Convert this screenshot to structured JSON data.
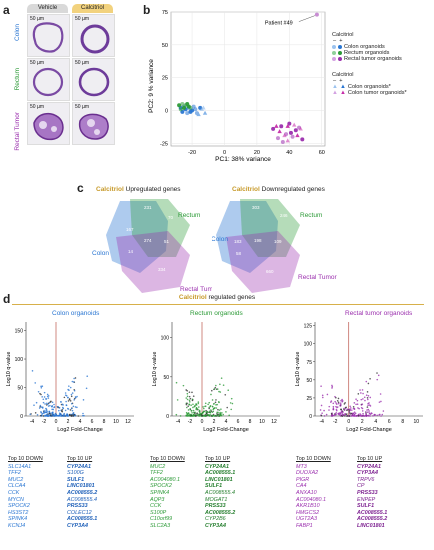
{
  "panels": {
    "a": "a",
    "b": "b",
    "c": "c",
    "d": "d"
  },
  "colors": {
    "colon": "#2a76d2",
    "rectum": "#2c9a37",
    "rectal_tumor": "#9b2fae",
    "gold": "#d7b04a",
    "vehicle_tab": "#d9d9d9",
    "calcitriol_tab": "#f2d27e"
  },
  "panel_a": {
    "col_vehicle": "Vehicle",
    "col_calcitriol": "Calcitriol",
    "rows": [
      "Colon",
      "Rectum",
      "Rectal Tumor"
    ],
    "scale": "50 µm"
  },
  "panel_b": {
    "annotation": "Patient #49",
    "legend": {
      "group1_title": "Calcitriol",
      "group1_signs": [
        "–",
        "+"
      ],
      "group1_items": [
        "Colon organoids",
        "Rectum organoids",
        "Rectal tumor organoids"
      ],
      "group2_title": "Calcitriol",
      "group2_signs": [
        "–",
        "+"
      ],
      "group2_items": [
        "Colon organoids*",
        "Colon tumor organoids*"
      ]
    }
  },
  "panel_c": {
    "left_title_a": "Calcitriol",
    "left_title_b": " Upregulated genes",
    "right_title_a": "Calcitriol",
    "right_title_b": " Downregulated genes",
    "set_colon": "Colon",
    "set_rectum": "Rectum",
    "set_tumor": "Rectal Tumor",
    "left_counts": {
      "colon_only": "167",
      "rectum_only": "70",
      "top_shared": "231",
      "center": "274",
      "right_mid": "51",
      "lower_left": "14",
      "tumor_only": "334"
    },
    "right_counts": {
      "colon_only": "183",
      "rectum_only": "246",
      "top_shared": "303",
      "center": "198",
      "right_mid": "109",
      "lower_left": "58",
      "tumor_only": "660"
    }
  },
  "panel_d": {
    "header_a": "Calcitriol",
    "header_b": " regulated genes",
    "ylabel": "Log10 q-value",
    "xlabel": "Log2 Fold-Change",
    "plots": [
      {
        "title": "Colon organoids",
        "yticks": [
          "150",
          "100",
          "50",
          "0"
        ],
        "xticks": [
          "-4",
          "-2",
          "0",
          "2",
          "4",
          "6",
          "8",
          "10",
          "12"
        ]
      },
      {
        "title": "Rectum organoids",
        "yticks": [
          "100",
          "50",
          "0"
        ],
        "xticks": [
          "-4",
          "-2",
          "0",
          "2",
          "4",
          "6",
          "8",
          "10",
          "12"
        ]
      },
      {
        "title": "Rectal tumor organoids",
        "yticks": [
          "125",
          "100",
          "75",
          "50",
          "25",
          "0"
        ],
        "xticks": [
          "-4",
          "-2",
          "0",
          "2",
          "4",
          "6",
          "8",
          "10"
        ]
      }
    ],
    "lists": [
      {
        "down_hd": "Top 10 DOWN",
        "up_hd": "Top 10 UP",
        "down": [
          "SLC14A1",
          "TFF2",
          "MUC2",
          "CLCA4",
          "CCK",
          "MYCN",
          "SPOCK2",
          "HS3ST2",
          "SPINK4",
          "KCNJ4"
        ],
        "up": [
          "CYP24A1",
          "S100G",
          "SULF1",
          "LINC01801",
          "AC008555.2",
          "AC008555.4",
          "PRSS33",
          "COLEC12",
          "AC008555.1",
          "CYP3A4"
        ],
        "up_bold": [
          0,
          2,
          3,
          4,
          6,
          8,
          9
        ]
      },
      {
        "down_hd": "Top 10 DOWN",
        "up_hd": "Top 10 UP",
        "down": [
          "MUC2",
          "TFF2",
          "AC004080.1",
          "SPOCK2",
          "SPINK4",
          "AQP3",
          "CCK",
          "S100P",
          "C10orf99",
          "SLC2A3"
        ],
        "up": [
          "CYP24A1",
          "AC008555.1",
          "LINC01801",
          "SULF1",
          "AC008555.4",
          "MOGAT1",
          "PRSS33",
          "AC008555.2",
          "CYP2B6",
          "CYP3A4"
        ],
        "up_bold": [
          0,
          1,
          2,
          3,
          6,
          7,
          9
        ]
      },
      {
        "down_hd": "Top 10 DOWN",
        "up_hd": "Top 10 UP",
        "down": [
          "MT3",
          "DUOXA2",
          "PIGR",
          "CA4",
          "ANXA10",
          "AC004080.1",
          "AKR1B10",
          "HMGCS2",
          "UGT2A3",
          "FABP1"
        ],
        "up": [
          "CYP24A1",
          "CYP3A4",
          "TRPV6",
          "CP",
          "PRSS33",
          "ENPEP",
          "SULF1",
          "AC008555.1",
          "AC008555.2",
          "LINC01801"
        ],
        "up_bold": [
          0,
          1,
          4,
          6,
          7,
          8,
          9
        ]
      }
    ]
  },
  "chart_data": [
    {
      "type": "scatter",
      "title": "",
      "xlabel": "PC1: 38% variance",
      "ylabel": "PC2: 9 % variance",
      "xlim": [
        -33,
        62
      ],
      "ylim": [
        -27,
        75
      ],
      "xticks": [
        -20,
        0,
        20,
        40,
        60
      ],
      "yticks": [
        -25,
        0,
        25,
        50,
        75
      ],
      "series": [
        {
          "name": "Colon organoids",
          "points": [
            [
              -27,
              2
            ],
            [
              -25,
              3
            ],
            [
              -24,
              1
            ],
            [
              -22,
              2
            ],
            [
              -20,
              0
            ],
            [
              -18,
              1
            ],
            [
              -26,
              -1
            ],
            [
              -23,
              -2
            ],
            [
              -21,
              -1
            ],
            [
              -19,
              3
            ],
            [
              -15,
              2
            ],
            [
              -17,
              -2
            ]
          ]
        },
        {
          "name": "Rectum organoids",
          "points": [
            [
              -28,
              4
            ],
            [
              -26,
              5
            ],
            [
              -25,
              2
            ],
            [
              -24,
              4
            ],
            [
              -22,
              3
            ],
            [
              -27,
              1
            ],
            [
              -23,
              5
            ],
            [
              -21,
              2
            ]
          ]
        },
        {
          "name": "Rectal tumor organoids",
          "points": [
            [
              30,
              -14
            ],
            [
              33,
              -21
            ],
            [
              35,
              -12
            ],
            [
              38,
              -18
            ],
            [
              40,
              -10
            ],
            [
              42,
              -20
            ],
            [
              44,
              -15
            ],
            [
              46,
              -13
            ],
            [
              48,
              -22
            ],
            [
              36,
              -24
            ],
            [
              41,
              -17
            ],
            [
              57,
              73
            ]
          ]
        },
        {
          "name": "Colon organoids*",
          "points": [
            [
              -16,
              -3
            ],
            [
              -14,
              1
            ],
            [
              -12,
              -2
            ],
            [
              -13,
              2
            ]
          ]
        },
        {
          "name": "Colon tumor organoids*",
          "points": [
            [
              32,
              -12
            ],
            [
              37,
              -19
            ],
            [
              39,
              -12
            ],
            [
              43,
              -11
            ],
            [
              45,
              -19
            ],
            [
              47,
              -14
            ],
            [
              34,
              -16
            ],
            [
              39,
              -23
            ]
          ]
        }
      ]
    }
  ]
}
